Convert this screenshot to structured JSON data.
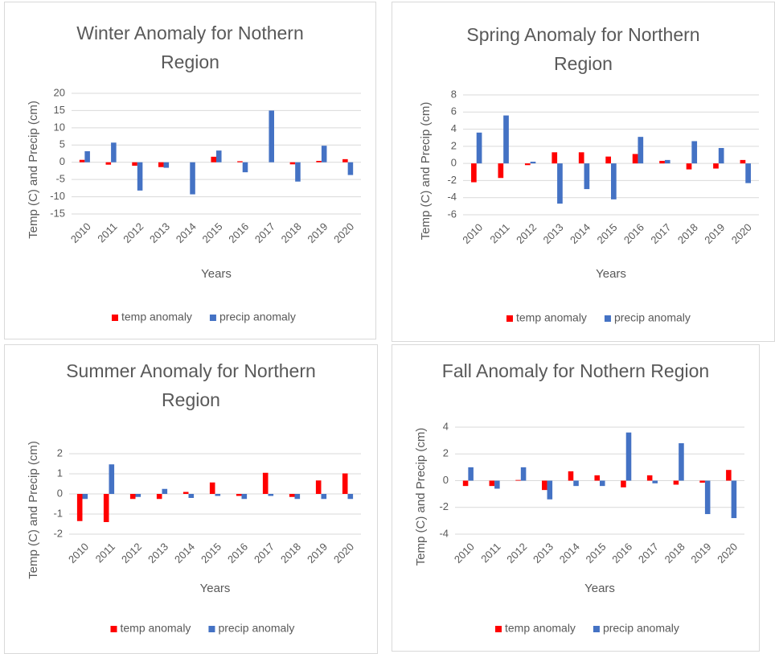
{
  "chart_data": [
    {
      "type": "bar",
      "title": "Winter Anomaly for Nothern Region",
      "x_label": "Years",
      "y_label": "Temp (C) and Precip (cm)",
      "categories": [
        "2010",
        "2011",
        "2012",
        "2013",
        "2014",
        "2015",
        "2016",
        "2017",
        "2018",
        "2019",
        "2020"
      ],
      "series": [
        {
          "name": "temp anomaly",
          "color": "#ff0000",
          "values": [
            0.7,
            -0.7,
            -1,
            -1.4,
            0,
            1.6,
            0.3,
            0,
            -0.6,
            0.4,
            0.9
          ]
        },
        {
          "name": "precip anomaly",
          "color": "#4472c4",
          "values": [
            3.2,
            5.7,
            -8.2,
            -1.6,
            -9.3,
            3.4,
            -2.9,
            15,
            -5.6,
            4.8,
            -3.7
          ]
        }
      ],
      "ylim": [
        -15,
        20
      ],
      "yticks": [
        -15,
        -10,
        -5,
        0,
        5,
        10,
        15,
        20
      ],
      "grid": true,
      "legend": "bottom"
    },
    {
      "type": "bar",
      "title": "Spring Anomaly for Northern Region",
      "x_label": "Years",
      "y_label": "Temp (C) and Precip (cm)",
      "categories": [
        "2010",
        "2011",
        "2012",
        "2013",
        "2014",
        "2015",
        "2016",
        "2017",
        "2018",
        "2019",
        "2020"
      ],
      "series": [
        {
          "name": "temp anomaly",
          "color": "#ff0000",
          "values": [
            -2.2,
            -1.7,
            -0.2,
            1.3,
            1.3,
            0.8,
            1.1,
            0.3,
            -0.7,
            -0.6,
            0.4
          ]
        },
        {
          "name": "precip anomaly",
          "color": "#4472c4",
          "values": [
            3.6,
            5.6,
            0.2,
            -4.7,
            -3,
            -4.2,
            3.1,
            0.4,
            2.6,
            1.8,
            -2.3
          ]
        }
      ],
      "ylim": [
        -6,
        8
      ],
      "yticks": [
        -6,
        -4,
        -2,
        0,
        2,
        4,
        6,
        8
      ],
      "grid": true,
      "legend": "bottom"
    },
    {
      "type": "bar",
      "title": "Summer Anomaly for Northern Region",
      "x_label": "Years",
      "y_label": "Temp (C) and Precip (cm)",
      "categories": [
        "2010",
        "2011",
        "2012",
        "2013",
        "2014",
        "2015",
        "2016",
        "2017",
        "2018",
        "2019",
        "2020"
      ],
      "series": [
        {
          "name": "temp anomaly",
          "color": "#ff0000",
          "values": [
            -1.35,
            -1.4,
            -0.25,
            -0.25,
            0.1,
            0.57,
            -0.1,
            1.05,
            -0.15,
            0.67,
            1.02
          ]
        },
        {
          "name": "precip anomaly",
          "color": "#4472c4",
          "values": [
            -0.25,
            1.47,
            -0.15,
            0.25,
            -0.2,
            -0.1,
            -0.25,
            -0.1,
            -0.25,
            -0.25,
            -0.25
          ]
        }
      ],
      "ylim": [
        -2,
        2
      ],
      "yticks": [
        -2,
        -1,
        0,
        1,
        2
      ],
      "grid": true,
      "legend": "bottom"
    },
    {
      "type": "bar",
      "title": "Fall Anomaly for Nothern Region",
      "x_label": "Years",
      "y_label": "Temp (C) and Precip (cm)",
      "categories": [
        "2010",
        "2011",
        "2012",
        "2013",
        "2014",
        "2015",
        "2016",
        "2017",
        "2018",
        "2019",
        "2020"
      ],
      "series": [
        {
          "name": "temp anomaly",
          "color": "#ff0000",
          "values": [
            -0.4,
            -0.4,
            0.05,
            -0.7,
            0.7,
            0.4,
            -0.5,
            0.4,
            -0.3,
            -0.15,
            0.8
          ]
        },
        {
          "name": "precip anomaly",
          "color": "#4472c4",
          "values": [
            1,
            -0.6,
            1,
            -1.4,
            -0.4,
            -0.4,
            3.6,
            -0.2,
            2.8,
            -2.5,
            -2.8
          ]
        }
      ],
      "ylim": [
        -4,
        4
      ],
      "yticks": [
        -4,
        -2,
        0,
        2,
        4
      ],
      "grid": true,
      "legend": "bottom"
    }
  ]
}
